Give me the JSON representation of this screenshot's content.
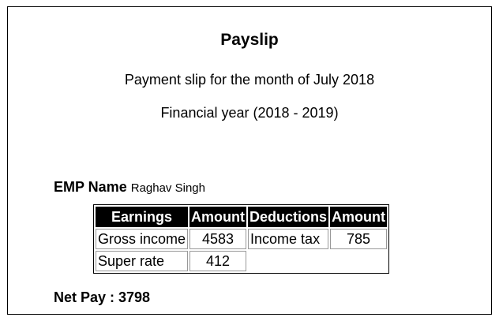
{
  "payslip": {
    "title": "Payslip",
    "subtitle": "Payment slip for the month of July 2018",
    "financial_year": "Financial year (2018 - 2019)",
    "employee": {
      "label": "EMP Name",
      "name": "Raghav Singh"
    },
    "table": {
      "headers": [
        "Earnings",
        "Amount",
        "Deductions",
        "Amount"
      ],
      "rows": [
        [
          "Gross income",
          "4583",
          "Income tax",
          "785"
        ],
        [
          "Super rate",
          "412",
          "",
          ""
        ]
      ]
    },
    "net_pay": "Net Pay : 3798"
  }
}
